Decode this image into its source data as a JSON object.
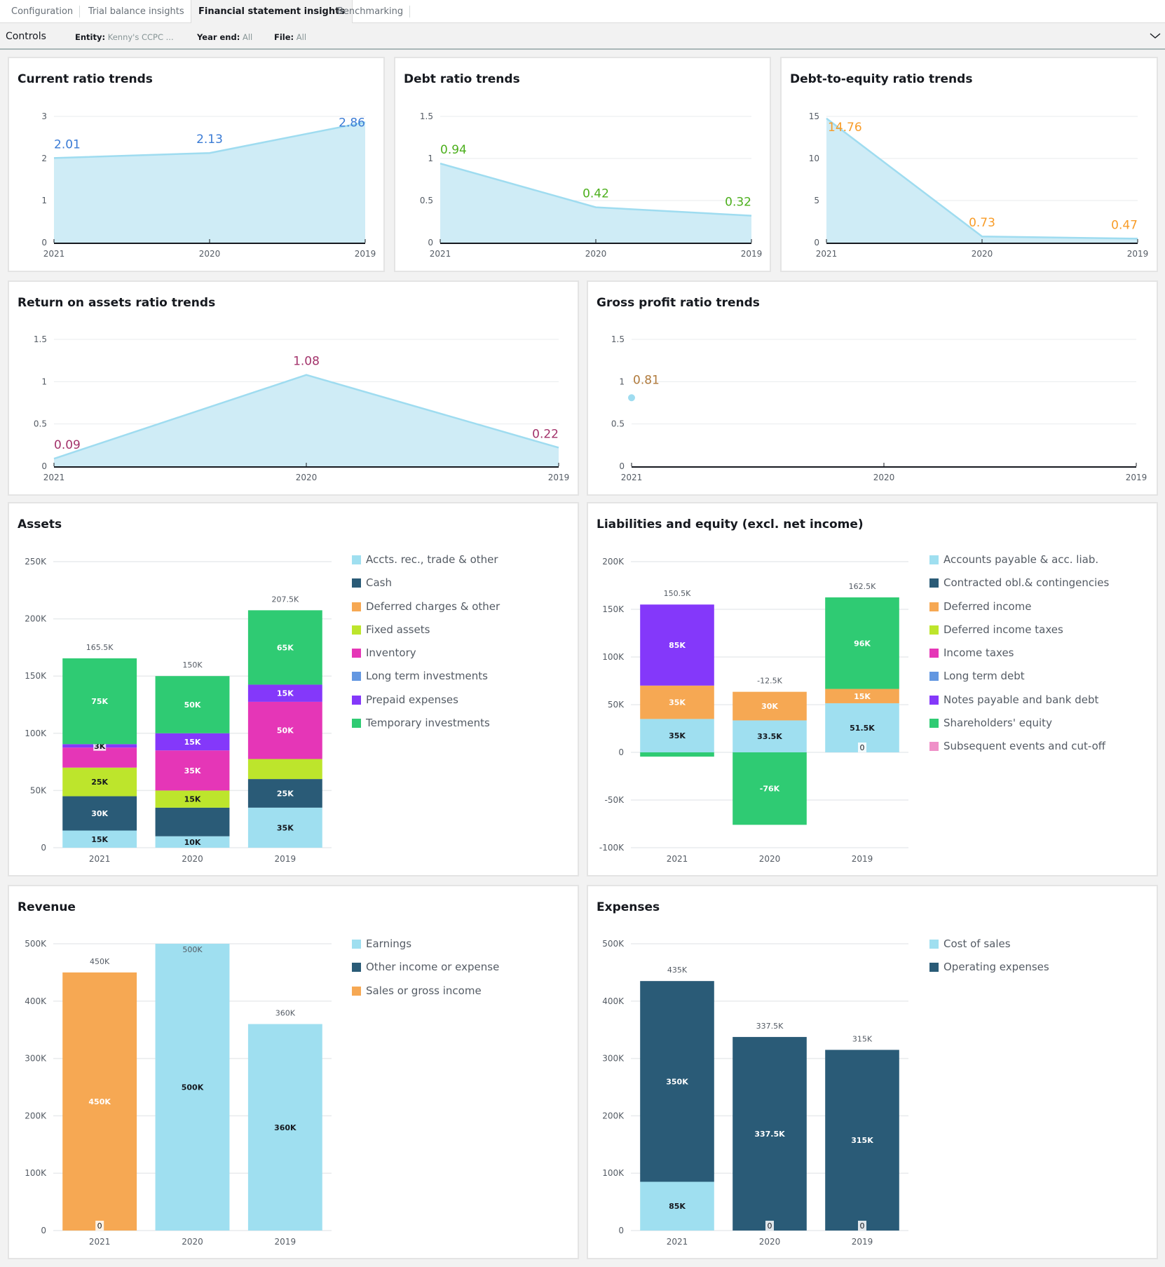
{
  "tabs": [
    {
      "label": "Configuration",
      "active": false
    },
    {
      "label": "Trial balance insights",
      "active": false
    },
    {
      "label": "Financial statement insights",
      "active": true
    },
    {
      "label": "Benchmarking",
      "active": false
    }
  ],
  "controls": {
    "title": "Controls",
    "filters": [
      {
        "label": "Entity:",
        "value": "Kenny's CCPC ..."
      },
      {
        "label": "Year end:",
        "value": "All"
      },
      {
        "label": "File:",
        "value": "All"
      }
    ],
    "expand_icon": "chevron-down-icon"
  },
  "colors": {
    "area_fill": "#cfecf6",
    "area_line": "#9fdcf0",
    "current_label": "#3a7bd5",
    "debt_label": "#4caf1c",
    "de_label": "#f89c28",
    "roa_label": "#a3336b",
    "gp_label": "#b07a3c"
  },
  "chart_data": [
    {
      "id": "current",
      "type": "area",
      "title": "Current ratio trends",
      "categories": [
        "2021",
        "2020",
        "2019"
      ],
      "values": [
        2.01,
        2.13,
        2.86
      ],
      "data_labels": [
        "2.01",
        "2.13",
        "2.86"
      ],
      "yticks": [
        "0",
        "1",
        "2",
        "3"
      ],
      "ylim": [
        0,
        3
      ],
      "label_color": "#3a7bd5",
      "grid": true
    },
    {
      "id": "debt",
      "type": "area",
      "title": "Debt ratio trends",
      "categories": [
        "2021",
        "2020",
        "2019"
      ],
      "values": [
        0.94,
        0.42,
        0.32
      ],
      "data_labels": [
        "0.94",
        "0.42",
        "0.32"
      ],
      "yticks": [
        "0",
        "0.5",
        "1",
        "1.5"
      ],
      "ylim": [
        0,
        1.5
      ],
      "label_color": "#4caf1c",
      "grid": true
    },
    {
      "id": "de",
      "type": "area",
      "title": "Debt-to-equity ratio trends",
      "categories": [
        "2021",
        "2020",
        "2019"
      ],
      "values": [
        14.76,
        0.73,
        0.47
      ],
      "data_labels": [
        "14.76",
        "0.73",
        "0.47"
      ],
      "yticks": [
        "0",
        "5",
        "10",
        "15"
      ],
      "ylim": [
        0,
        15
      ],
      "label_color": "#f89c28",
      "grid": true
    },
    {
      "id": "roa",
      "type": "area",
      "title": "Return on assets ratio trends",
      "categories": [
        "2021",
        "2020",
        "2019"
      ],
      "values": [
        0.09,
        1.08,
        0.22
      ],
      "data_labels": [
        "0.09",
        "1.08",
        "0.22"
      ],
      "yticks": [
        "0",
        "0.5",
        "1",
        "1.5"
      ],
      "ylim": [
        0,
        1.5
      ],
      "label_color": "#a3336b",
      "grid": true
    },
    {
      "id": "gp",
      "type": "area",
      "title": "Gross profit ratio trends",
      "categories": [
        "2021",
        "2020",
        "2019"
      ],
      "values": [
        0.81,
        null,
        null
      ],
      "data_labels": [
        "0.81",
        null,
        null
      ],
      "yticks": [
        "0",
        "0.5",
        "1",
        "1.5"
      ],
      "ylim": [
        0,
        1.5
      ],
      "label_color": "#b07a3c",
      "grid": true
    },
    {
      "id": "assets",
      "type": "bar",
      "stacked": true,
      "title": "Assets",
      "categories": [
        "2021",
        "2020",
        "2019"
      ],
      "yticks": [
        "0",
        "50K",
        "100K",
        "150K",
        "200K",
        "250K"
      ],
      "ylim": [
        0,
        250000
      ],
      "totals": [
        "165.5K",
        "150K",
        "207.5K"
      ],
      "legend_position": "right",
      "series": [
        {
          "name": "Accts. rec., trade & other",
          "color": "#9fdff0",
          "values": [
            15000,
            10000,
            35000
          ],
          "labels": [
            "15K",
            "10K",
            "35K"
          ],
          "label_dark": true
        },
        {
          "name": "Cash",
          "color": "#2a5b77",
          "values": [
            30000,
            25000,
            25000
          ],
          "labels": [
            "30K",
            "",
            "25K"
          ]
        },
        {
          "name": "Deferred charges & other",
          "color": "#f6a853",
          "values": [
            0,
            0,
            0
          ],
          "labels": [
            "",
            "",
            ""
          ]
        },
        {
          "name": "Fixed assets",
          "color": "#bde52c",
          "values": [
            25000,
            15000,
            17500
          ],
          "labels": [
            "25K",
            "15K",
            ""
          ],
          "label_dark": true
        },
        {
          "name": "Inventory",
          "color": "#e536b7",
          "values": [
            17500,
            35000,
            50000
          ],
          "labels": [
            "",
            "35K",
            "50K"
          ]
        },
        {
          "name": "Long term investments",
          "color": "#6397e1",
          "values": [
            0,
            0,
            0
          ],
          "labels": [
            "",
            "",
            ""
          ]
        },
        {
          "name": "Prepaid expenses",
          "color": "#8438fa",
          "values": [
            3000,
            15000,
            15000
          ],
          "labels": [
            "3K",
            "15K",
            "15K"
          ]
        },
        {
          "name": "Temporary investments",
          "color": "#2fcb73",
          "values": [
            75000,
            50000,
            65000
          ],
          "labels": [
            "75K",
            "50K",
            "65K"
          ]
        }
      ]
    },
    {
      "id": "liab",
      "type": "bar",
      "stacked": true,
      "title": "Liabilities and equity (excl. net income)",
      "categories": [
        "2021",
        "2020",
        "2019"
      ],
      "yticks": [
        "-100K",
        "-50K",
        "0",
        "50K",
        "100K",
        "150K",
        "200K"
      ],
      "ylim": [
        -100000,
        200000
      ],
      "totals": [
        "150.5K",
        "-12.5K",
        "162.5K"
      ],
      "legend_position": "right",
      "series": [
        {
          "name": "Accounts payable & acc. liab.",
          "color": "#9fdff0",
          "values": [
            35000,
            33500,
            51500
          ],
          "labels": [
            "35K",
            "33.5K",
            "51.5K"
          ],
          "label_dark": true
        },
        {
          "name": "Contracted obl.& contingencies",
          "color": "#2a5b77",
          "values": [
            0,
            0,
            0
          ],
          "labels": [
            "",
            "",
            ""
          ]
        },
        {
          "name": "Deferred income",
          "color": "#f6a853",
          "values": [
            35000,
            30000,
            15000
          ],
          "labels": [
            "35K",
            "30K",
            "15K"
          ]
        },
        {
          "name": "Deferred income taxes",
          "color": "#bde52c",
          "values": [
            0,
            0,
            0
          ],
          "labels": [
            "",
            "",
            ""
          ]
        },
        {
          "name": "Income taxes",
          "color": "#e536b7",
          "values": [
            0,
            0,
            0
          ],
          "labels": [
            "",
            "",
            ""
          ]
        },
        {
          "name": "Long term debt",
          "color": "#6397e1",
          "values": [
            0,
            0,
            0
          ],
          "labels": [
            "",
            "",
            ""
          ]
        },
        {
          "name": "Notes payable and bank debt",
          "color": "#8438fa",
          "values": [
            85000,
            0,
            0
          ],
          "labels": [
            "85K",
            "",
            ""
          ]
        },
        {
          "name": "Shareholders' equity",
          "color": "#2fcb73",
          "values": [
            -4500,
            -76000,
            96000
          ],
          "labels": [
            "",
            "-76K",
            "96K"
          ],
          "zero_labels": [
            "",
            "",
            "0"
          ]
        },
        {
          "name": "Subsequent events and cut-off",
          "color": "#ef90c8",
          "values": [
            0,
            0,
            0
          ],
          "labels": [
            "",
            "",
            ""
          ]
        }
      ]
    },
    {
      "id": "revenue",
      "type": "bar",
      "stacked": true,
      "title": "Revenue",
      "categories": [
        "2021",
        "2020",
        "2019"
      ],
      "yticks": [
        "0",
        "100K",
        "200K",
        "300K",
        "400K",
        "500K"
      ],
      "ylim": [
        0,
        500000
      ],
      "totals": [
        "450K",
        "500K",
        "360K"
      ],
      "legend_position": "right",
      "series": [
        {
          "name": "Earnings",
          "color": "#9fdff0",
          "values": [
            0,
            500000,
            360000
          ],
          "labels": [
            "0",
            "500K",
            "360K"
          ],
          "label_dark": true
        },
        {
          "name": "Other income or expense",
          "color": "#2a5b77",
          "values": [
            0,
            0,
            0
          ],
          "labels": [
            "",
            "",
            ""
          ]
        },
        {
          "name": "Sales or gross income",
          "color": "#f6a853",
          "values": [
            450000,
            0,
            0
          ],
          "labels": [
            "450K",
            "",
            ""
          ]
        }
      ]
    },
    {
      "id": "expenses",
      "type": "bar",
      "stacked": true,
      "title": "Expenses",
      "categories": [
        "2021",
        "2020",
        "2019"
      ],
      "yticks": [
        "0",
        "100K",
        "200K",
        "300K",
        "400K",
        "500K"
      ],
      "ylim": [
        0,
        500000
      ],
      "totals": [
        "435K",
        "337.5K",
        "315K"
      ],
      "legend_position": "right",
      "series": [
        {
          "name": "Cost of sales",
          "color": "#9fdff0",
          "values": [
            85000,
            0,
            0
          ],
          "labels": [
            "85K",
            "0",
            "0"
          ],
          "label_dark": true
        },
        {
          "name": "Operating expenses",
          "color": "#2a5b77",
          "values": [
            350000,
            337500,
            315000
          ],
          "labels": [
            "350K",
            "337.5K",
            "315K"
          ]
        }
      ]
    }
  ]
}
